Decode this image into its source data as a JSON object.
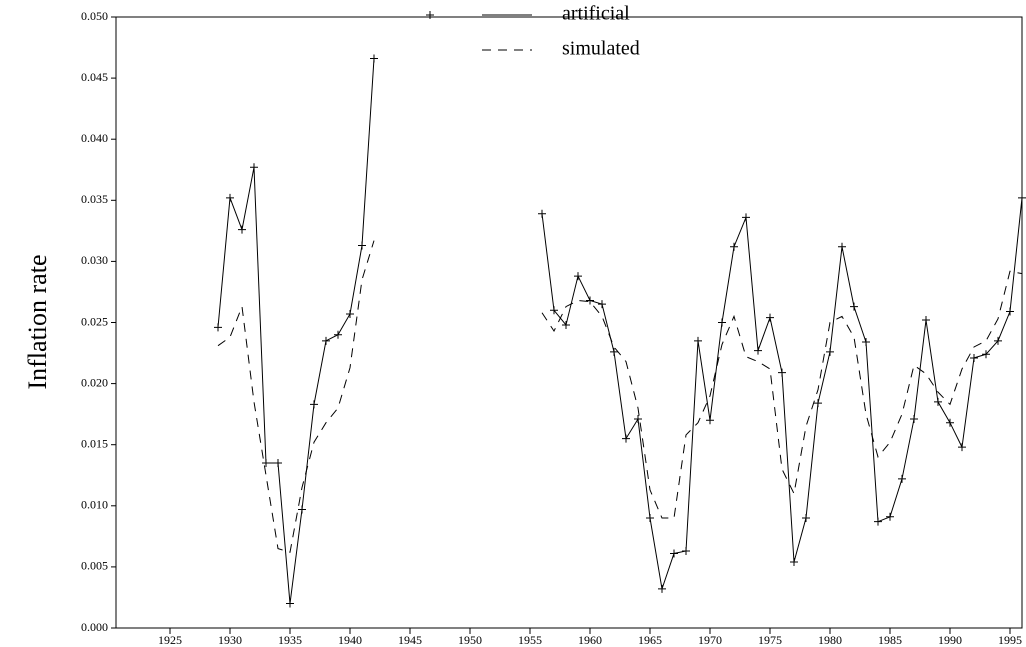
{
  "chart_data": {
    "type": "line",
    "y_label": "Inflation rate",
    "x": [
      1929,
      1930,
      1931,
      1932,
      1933,
      1934,
      1935,
      1936,
      1937,
      1938,
      1939,
      1940,
      1941,
      1942,
      1943,
      1944,
      1945,
      1946,
      1947,
      1948,
      1949,
      1950,
      1951,
      1952,
      1953,
      1954,
      1955,
      1956,
      1957,
      1958,
      1959,
      1960,
      1961,
      1962,
      1963,
      1964,
      1965,
      1966,
      1967,
      1968,
      1969,
      1970,
      1971,
      1972,
      1973,
      1974,
      1975,
      1976,
      1977,
      1978,
      1979,
      1980,
      1981,
      1982,
      1983,
      1984,
      1985,
      1986,
      1987,
      1988,
      1989,
      1990,
      1991,
      1992,
      1993,
      1994,
      1995,
      1996
    ],
    "series": [
      {
        "name": "artificial",
        "color": "#000000",
        "dash": "solid",
        "marker": "plus",
        "values": [
          0.0246,
          0.0352,
          0.0326,
          0.0377,
          0.0135,
          0.0135,
          0.002,
          0.0097,
          0.0183,
          0.0235,
          0.024,
          0.0257,
          0.0313,
          0.0466,
          null,
          null,
          null,
          null,
          null,
          null,
          null,
          null,
          null,
          null,
          null,
          null,
          null,
          0.0339,
          0.026,
          0.0248,
          0.0288,
          0.0268,
          0.0265,
          0.0226,
          0.0155,
          0.0171,
          0.009,
          0.0032,
          0.0061,
          0.0063,
          0.0235,
          0.017,
          0.025,
          0.0312,
          0.0336,
          0.0227,
          0.0254,
          0.0209,
          0.0054,
          0.009,
          0.0184,
          0.0226,
          0.0312,
          0.0263,
          0.0234,
          0.0087,
          0.0091,
          0.0122,
          0.0171,
          0.0252,
          0.0185,
          0.0168,
          0.0148,
          0.0221,
          0.0224,
          0.0235,
          0.0259,
          0.0352
        ]
      },
      {
        "name": "simulated",
        "color": "#000000",
        "dash": "dashed",
        "values": [
          0.0231,
          0.0238,
          0.0263,
          0.0185,
          0.0125,
          0.0065,
          0.0062,
          0.0115,
          0.0152,
          0.0168,
          0.018,
          0.0213,
          0.0285,
          0.0317,
          null,
          null,
          null,
          null,
          null,
          null,
          null,
          null,
          null,
          null,
          null,
          null,
          null,
          0.0258,
          0.0243,
          0.0263,
          0.0268,
          0.0267,
          0.0255,
          0.023,
          0.0218,
          0.018,
          0.0113,
          0.009,
          0.009,
          0.0158,
          0.0168,
          0.019,
          0.0232,
          0.0255,
          0.0222,
          0.0218,
          0.0212,
          0.013,
          0.011,
          0.0165,
          0.0195,
          0.025,
          0.0255,
          0.0238,
          0.0175,
          0.014,
          0.0152,
          0.0175,
          0.0215,
          0.0208,
          0.0193,
          0.0183,
          0.0212,
          0.023,
          0.0235,
          0.0253,
          0.0292,
          0.029
        ]
      }
    ],
    "xlim": [
      1920.5,
      1996
    ],
    "xticks": [
      1925,
      1930,
      1935,
      1940,
      1945,
      1950,
      1955,
      1960,
      1965,
      1970,
      1975,
      1980,
      1985,
      1990,
      1995
    ],
    "ylim": [
      0,
      0.05
    ],
    "yticks": [
      {
        "value": 0,
        "label": "0.000"
      },
      {
        "value": 0.005,
        "label": "0.005"
      },
      {
        "value": 0.01,
        "label": "0.010"
      },
      {
        "value": 0.015,
        "label": "0.015"
      },
      {
        "value": 0.02,
        "label": "0.020"
      },
      {
        "value": 0.025,
        "label": "0.025"
      },
      {
        "value": 0.03,
        "label": "0.030"
      },
      {
        "value": 0.035,
        "label": "0.035"
      },
      {
        "value": 0.04,
        "label": "0.040"
      },
      {
        "value": 0.045,
        "label": "0.045"
      },
      {
        "value": 0.05,
        "label": "0.050"
      }
    ],
    "grid": false,
    "legend": "top"
  }
}
